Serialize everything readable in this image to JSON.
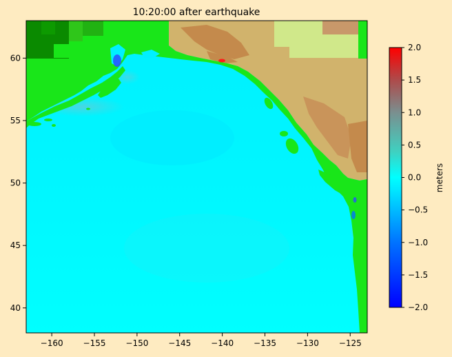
{
  "figure": {
    "background": "#feebc1"
  },
  "chart_data": {
    "type": "heatmap",
    "title": "10:20:00 after earthquake",
    "xlabel": "",
    "ylabel": "",
    "xlim": [
      -163,
      -123
    ],
    "ylim": [
      38,
      63
    ],
    "x_ticks": [
      -160,
      -155,
      -150,
      -145,
      -140,
      -135,
      -130,
      -125
    ],
    "x_tick_labels": [
      "−160",
      "−155",
      "−150",
      "−145",
      "−140",
      "−135",
      "−130",
      "−125"
    ],
    "y_ticks": [
      40,
      45,
      50,
      55,
      60
    ],
    "y_tick_labels": [
      "40",
      "45",
      "50",
      "55",
      "60"
    ],
    "ocean_base_value": 0.0,
    "colorbar": {
      "label": "meters",
      "range": [
        -2.0,
        2.0
      ],
      "ticks": [
        2.0,
        1.5,
        1.0,
        0.5,
        0.0,
        -0.5,
        -1.0,
        -1.5,
        -2.0
      ],
      "tick_labels": [
        "2.0",
        "1.5",
        "1.0",
        "0.5",
        "0.0",
        "−0.5",
        "−1.0",
        "−1.5",
        "−2.0"
      ],
      "colors": [
        "#0000ff",
        "#0073ff",
        "#00e6ff",
        "#00ffff",
        "#40d0c0",
        "#7a8f8f",
        "#b04848",
        "#ff0000"
      ]
    },
    "terrain_colors": [
      "#0a8a00",
      "#19e619",
      "#7bee3a",
      "#d0e88a",
      "#d1b36c",
      "#c48a4c"
    ]
  }
}
